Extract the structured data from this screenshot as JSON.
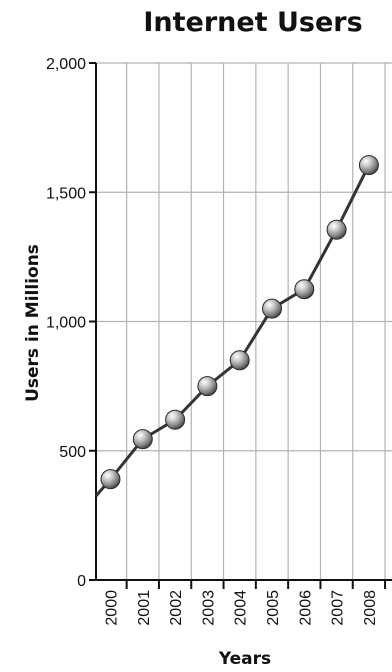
{
  "chart_data": {
    "type": "line",
    "title": "Internet Users",
    "xlabel": "Years",
    "ylabel": "Users in Millions",
    "categories": [
      "2000",
      "2001",
      "2002",
      "2003",
      "2004",
      "2005",
      "2006",
      "2007",
      "2008"
    ],
    "values": [
      390,
      545,
      620,
      750,
      850,
      1050,
      1125,
      1355,
      1605
    ],
    "line_start_value": 325,
    "ylim": [
      0,
      2000
    ],
    "yticks": [
      0,
      500,
      1000,
      1500,
      2000
    ],
    "ytick_labels": [
      "0",
      "500",
      "1,000",
      "1,500",
      "2,000"
    ],
    "grid": true,
    "colors": {
      "line": "#333333",
      "grid": "#b3b3b3",
      "marker": "#8a8a8a"
    }
  }
}
